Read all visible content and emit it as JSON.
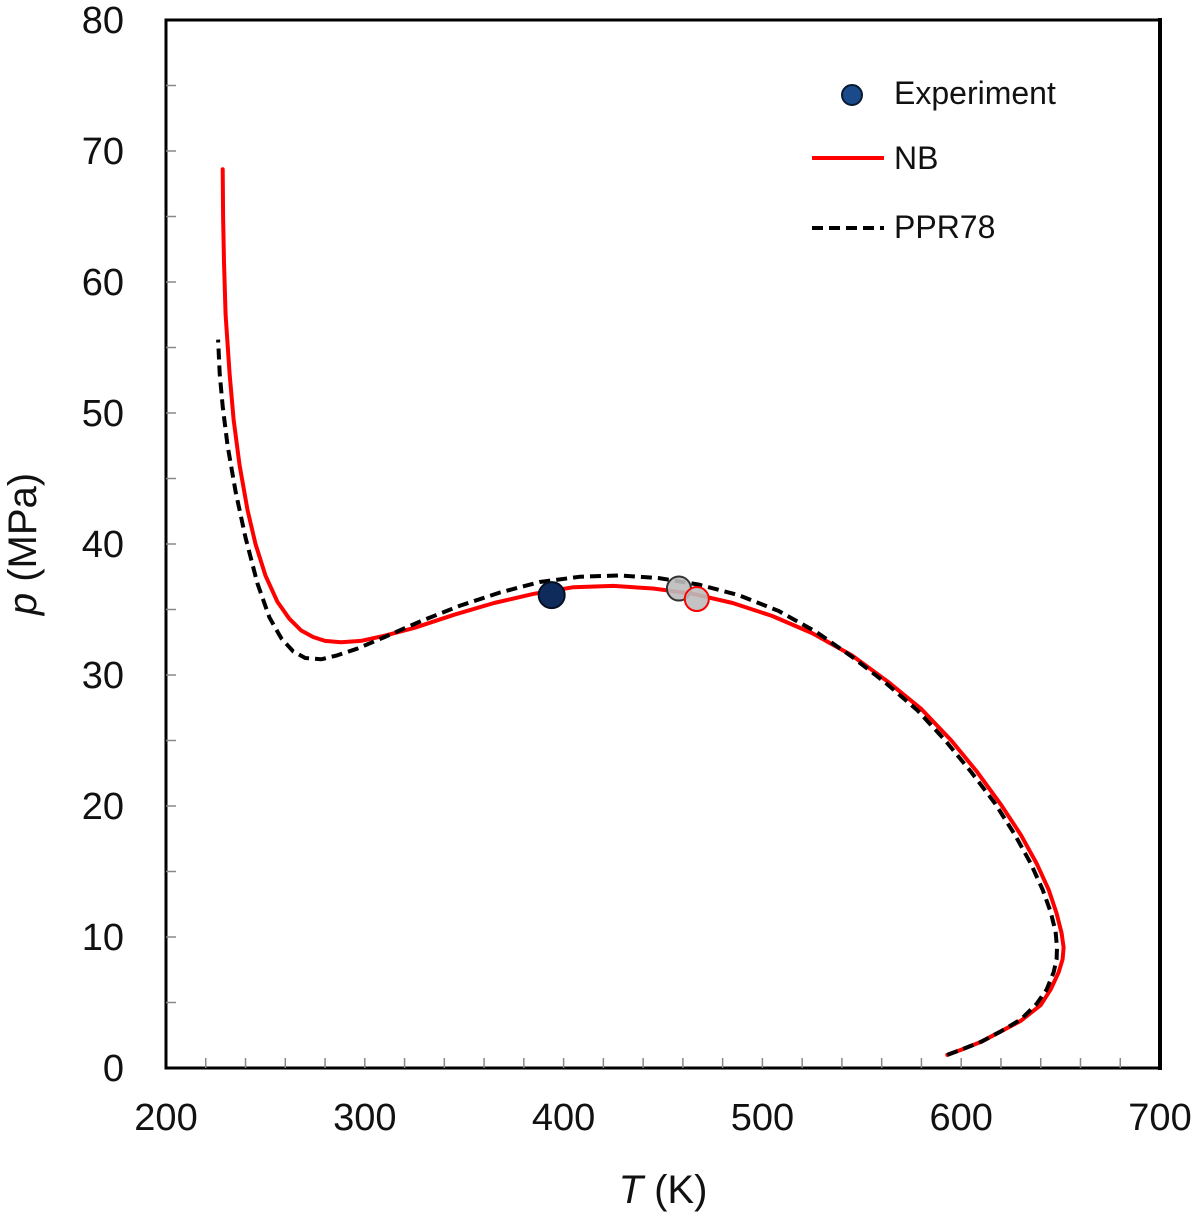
{
  "chart_data": {
    "type": "line",
    "title": "",
    "xlabel": {
      "symbol": "T",
      "unit": " (K)"
    },
    "ylabel": {
      "symbol": "p",
      "unit": " (MPa)"
    },
    "xlim": [
      200,
      700
    ],
    "ylim": [
      0,
      80
    ],
    "x_major_ticks": [
      "200",
      "300",
      "400",
      "500",
      "600",
      "700"
    ],
    "y_major_ticks": [
      "0",
      "10",
      "20",
      "30",
      "40",
      "50",
      "60",
      "70",
      "80"
    ],
    "x_minor_step": 20,
    "y_minor_step": 5,
    "grid": false,
    "legend_position": "top-right",
    "legend": [
      {
        "label": "Experiment",
        "kind": "marker"
      },
      {
        "label": "NB",
        "kind": "solid-line"
      },
      {
        "label": "PPR78",
        "kind": "dashed-line"
      }
    ],
    "colors": {
      "nb": "#ff0000",
      "ppr78": "#000000",
      "experiment": "#0f2b5b",
      "critical_point": "#bdbdbd"
    },
    "series": [
      {
        "name": "NB",
        "style": "solid",
        "x": [
          593,
          600,
          610,
          620,
          630,
          640,
          645,
          649,
          651,
          651.5,
          650.5,
          648,
          644,
          638,
          630,
          620,
          608,
          595,
          580,
          563,
          545,
          525,
          505,
          485,
          465,
          445,
          425,
          405,
          385,
          365,
          345,
          325,
          310,
          298,
          288,
          280,
          274,
          268,
          262,
          256,
          250,
          245,
          241,
          237,
          234,
          232,
          230,
          229.2,
          228.7,
          228.5
        ],
        "y": [
          1,
          1.4,
          2,
          2.8,
          3.6,
          4.8,
          6,
          7.3,
          8.3,
          9.2,
          10.3,
          11.8,
          13.6,
          15.6,
          17.8,
          20.1,
          22.6,
          25,
          27.4,
          29.5,
          31.5,
          33.2,
          34.5,
          35.5,
          36.2,
          36.6,
          36.8,
          36.7,
          36.2,
          35.5,
          34.6,
          33.6,
          33,
          32.6,
          32.5,
          32.6,
          32.9,
          33.4,
          34.3,
          35.6,
          37.6,
          40,
          42.6,
          46,
          49.5,
          53,
          57.5,
          61.5,
          65,
          68.6
        ]
      },
      {
        "name": "PPR78",
        "style": "dashed",
        "x": [
          593,
          600,
          610,
          620,
          630,
          638,
          643,
          646.5,
          648,
          648.2,
          647.5,
          645,
          641,
          635,
          627,
          617,
          605,
          592,
          578,
          562,
          545,
          527,
          508,
          488,
          468,
          448,
          428,
          408,
          388,
          368,
          348,
          328,
          310,
          296,
          286,
          278,
          270,
          264,
          258,
          252,
          246,
          240,
          235,
          231,
          228.5,
          227,
          226.2
        ],
        "y": [
          1,
          1.4,
          2,
          2.8,
          3.7,
          4.9,
          6,
          7.3,
          8.3,
          9.2,
          10.4,
          11.9,
          13.6,
          15.6,
          17.8,
          20.2,
          22.6,
          25,
          27.3,
          29.4,
          31.4,
          33.3,
          34.9,
          36.1,
          36.9,
          37.4,
          37.6,
          37.5,
          37.1,
          36.3,
          35.3,
          34.1,
          32.9,
          32,
          31.5,
          31.2,
          31.3,
          31.8,
          32.8,
          34.4,
          37,
          40.5,
          44,
          47.5,
          50.5,
          53,
          55.6
        ]
      },
      {
        "name": "Experiment",
        "style": "marker",
        "x": [
          394
        ],
        "y": [
          36.1
        ]
      }
    ],
    "critical_points": [
      {
        "series": "PPR78",
        "x": 458,
        "y": 36.6
      },
      {
        "series": "NB",
        "x": 467,
        "y": 35.8
      }
    ]
  }
}
